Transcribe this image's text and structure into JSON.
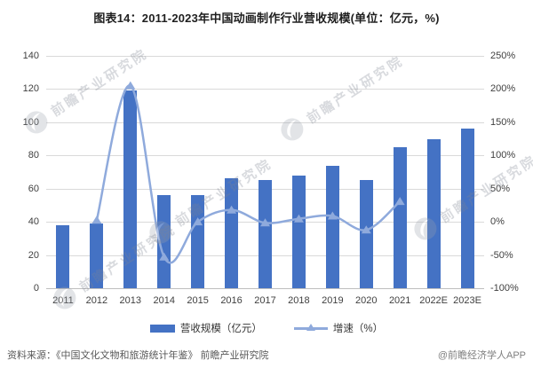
{
  "title": "图表14：2011-2023年中国动画制作行业营收规模(单位：亿元，%)",
  "chart_data": {
    "type": "bar",
    "title": "图表14：2011-2023年中国动画制作行业营收规模(单位：亿元，%)",
    "categories": [
      "2011",
      "2012",
      "2013",
      "2014",
      "2015",
      "2016",
      "2017",
      "2018",
      "2019",
      "2020",
      "2021",
      "2022E",
      "2023E"
    ],
    "series": [
      {
        "name": "营收规模（亿元）",
        "type": "bar",
        "axis": "left",
        "color": "#4472c4",
        "values": [
          38,
          39,
          119,
          56,
          56,
          66,
          65,
          68,
          74,
          65,
          85,
          90,
          96
        ]
      },
      {
        "name": "增速（%）",
        "type": "line",
        "axis": "right",
        "color": "#8faadc",
        "x_start_index": 1,
        "values": [
          2.6,
          205.1,
          -52.9,
          0.0,
          17.9,
          -1.5,
          4.6,
          8.8,
          -12.2,
          30.8
        ]
      }
    ],
    "left_axis": {
      "min": 0,
      "max": 140,
      "ticks_top_to_bottom": [
        "140",
        "120",
        "100",
        "80",
        "60",
        "40",
        "20",
        "0"
      ]
    },
    "right_axis": {
      "min": -100,
      "max": 250,
      "ticks_top_to_bottom": [
        "250%",
        "200%",
        "150%",
        "100%",
        "50%",
        "0%",
        "-50%",
        "-100%"
      ]
    },
    "grid": true,
    "legend_position": "bottom",
    "xlabel": "",
    "ylabel": ""
  },
  "legend": {
    "items": [
      {
        "label": "营收规模（亿元）",
        "swatch": "bar"
      },
      {
        "label": "增速（%）",
        "swatch": "line"
      }
    ]
  },
  "footer": {
    "source": "资料来源：《中国文化文物和旅游统计年鉴》 前瞻产业研究院",
    "credit": "@前瞻经济学人APP"
  },
  "watermark": {
    "text": "前瞻产业研究院"
  },
  "colors": {
    "bar": "#4472c4",
    "line": "#8faadc",
    "grid": "#d9d9d9",
    "axis_text": "#3f3f3f",
    "footer_text": "#595959"
  }
}
